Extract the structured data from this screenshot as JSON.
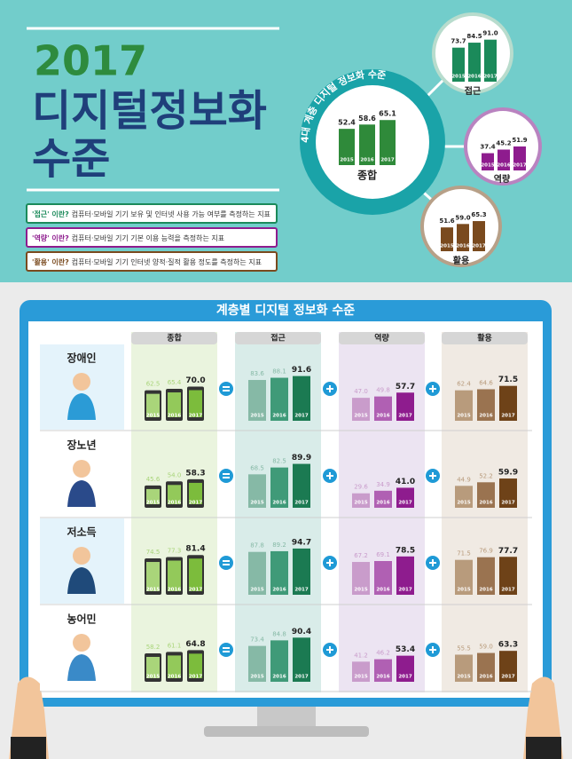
{
  "header": {
    "year": "2017",
    "title_line1": "디지털정보화",
    "title_line2": "수준"
  },
  "definitions": [
    {
      "term": "'접근' 이란?",
      "text": "컴퓨터·모바일 기기 보유 및 인터넷 사용 가능 여부를 측정하는 지표",
      "color": "#1b8a5a"
    },
    {
      "term": "'역량' 이란?",
      "text": "컴퓨터·모바일 기기 기본 이용 능력을 측정하는 지표",
      "color": "#8e1c8e"
    },
    {
      "term": "'활용' 이란?",
      "text": "컴퓨터·모바일 기기 인터넷 양적·질적 활용 정도를 측정하는 지표",
      "color": "#7a4a1e"
    }
  ],
  "overview": {
    "arc_label": "4대 계층 디지털 정보화 수준",
    "years": [
      "2015",
      "2016",
      "2017"
    ],
    "groups": [
      {
        "name": "종합",
        "values": [
          52.4,
          58.6,
          65.1
        ],
        "color": "#2f8a3a"
      },
      {
        "name": "접근",
        "values": [
          73.7,
          84.5,
          91.0
        ],
        "value_labels": [
          "73.7",
          "84.5",
          "91.0"
        ],
        "color": "#1b8a5a"
      },
      {
        "name": "역량",
        "values": [
          37.4,
          45.2,
          51.9
        ],
        "color": "#8e1c8e"
      },
      {
        "name": "활용",
        "values": [
          51.6,
          59.0,
          65.3
        ],
        "value_labels": [
          "51.6",
          "59.0",
          "65.3"
        ],
        "color": "#7a4a1e"
      }
    ]
  },
  "board": {
    "title": "계층별 디지털 정보화 수준",
    "years": [
      "2015",
      "2016",
      "2017"
    ],
    "columns": [
      {
        "name": "종합",
        "colors": [
          "#a9d57a",
          "#93c95a",
          "#7cbc3c"
        ]
      },
      {
        "name": "접근",
        "colors": [
          "#86b9a6",
          "#3f9a78",
          "#1b7a52"
        ]
      },
      {
        "name": "역량",
        "colors": [
          "#c99ccb",
          "#b060b3",
          "#8e1c8e"
        ]
      },
      {
        "name": "활용",
        "colors": [
          "#b89b7c",
          "#9a7350",
          "#6e4218"
        ]
      }
    ],
    "rows": [
      {
        "name": "장애인",
        "cells": [
          {
            "values": [
              62.5,
              65.4,
              70.0
            ],
            "value_labels": [
              "62.5",
              "65.4",
              "70.0"
            ]
          },
          {
            "values": [
              83.6,
              88.1,
              91.6
            ]
          },
          {
            "values": [
              47.0,
              49.8,
              57.7
            ],
            "value_labels": [
              "47.0",
              "49.8",
              "57.7"
            ]
          },
          {
            "values": [
              62.4,
              64.6,
              71.5
            ]
          }
        ]
      },
      {
        "name": "장노년",
        "cells": [
          {
            "values": [
              45.6,
              54.0,
              58.3
            ],
            "value_labels": [
              "45.6",
              "54.0",
              "58.3"
            ]
          },
          {
            "values": [
              68.5,
              82.5,
              89.9
            ]
          },
          {
            "values": [
              29.6,
              34.9,
              41.0
            ],
            "value_labels": [
              "29.6",
              "34.9",
              "41.0"
            ]
          },
          {
            "values": [
              44.9,
              52.2,
              59.9
            ]
          }
        ]
      },
      {
        "name": "저소득",
        "cells": [
          {
            "values": [
              74.5,
              77.3,
              81.4
            ]
          },
          {
            "values": [
              87.8,
              89.2,
              94.7
            ]
          },
          {
            "values": [
              67.2,
              69.1,
              78.5
            ]
          },
          {
            "values": [
              71.5,
              76.9,
              77.7
            ]
          }
        ]
      },
      {
        "name": "농어민",
        "cells": [
          {
            "values": [
              58.2,
              61.1,
              64.8
            ]
          },
          {
            "values": [
              73.4,
              84.8,
              90.4
            ]
          },
          {
            "values": [
              41.2,
              46.2,
              53.4
            ]
          },
          {
            "values": [
              55.5,
              59.0,
              63.3
            ],
            "value_labels": [
              "55.5",
              "59.0",
              "63.3"
            ]
          }
        ]
      }
    ]
  }
}
